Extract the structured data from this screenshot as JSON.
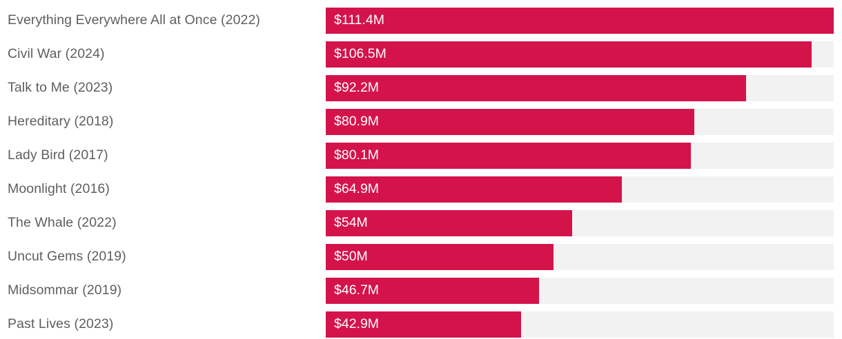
{
  "chart_data": {
    "type": "bar",
    "orientation": "horizontal",
    "title": "",
    "xlabel": "",
    "ylabel": "",
    "xlim": [
      0,
      111.4
    ],
    "grid": false,
    "legend": false,
    "categories": [
      "Everything Everywhere All at Once (2022)",
      "Civil War (2024)",
      "Talk to Me (2023)",
      "Hereditary (2018)",
      "Lady Bird (2017)",
      "Moonlight (2016)",
      "The Whale (2022)",
      "Uncut Gems (2019)",
      "Midsommar (2019)",
      "Past Lives (2023)"
    ],
    "values": [
      111.4,
      106.5,
      92.2,
      80.9,
      80.1,
      64.9,
      54,
      50,
      46.7,
      42.9
    ],
    "value_labels": [
      "$111.4M",
      "$106.5M",
      "$92.2M",
      "$80.9M",
      "$80.1M",
      "$64.9M",
      "$54M",
      "$50M",
      "$46.7M",
      "$42.9M"
    ],
    "colors": {
      "bar": "#D4134B",
      "track": "#F2F2F2",
      "category_label": "#5E5E5E",
      "value_label": "#FFFFFF",
      "background": "#FFFFFF"
    }
  }
}
